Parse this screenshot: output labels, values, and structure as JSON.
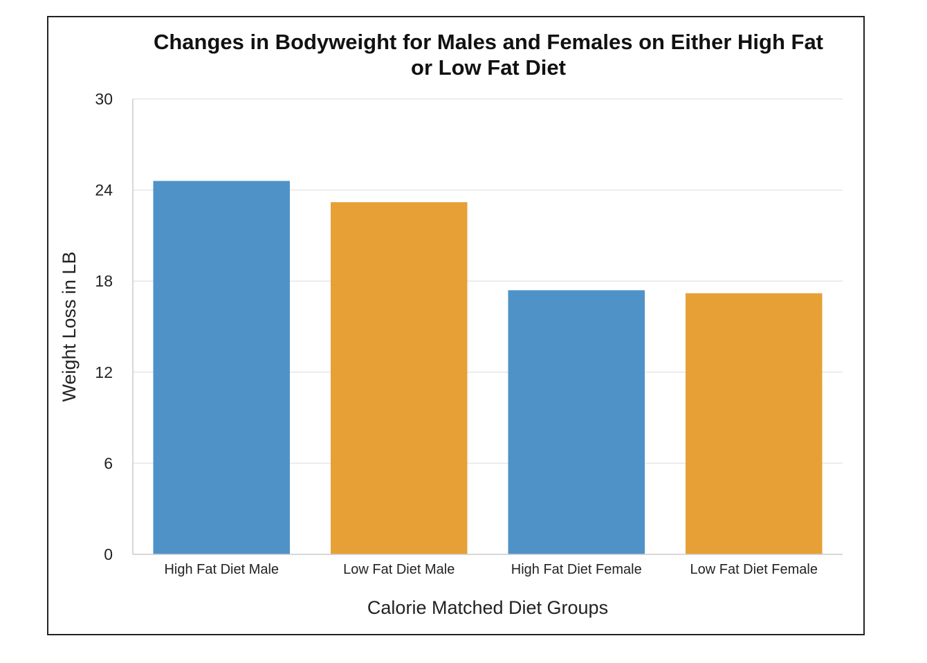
{
  "chart_data": {
    "type": "bar",
    "title_lines": [
      "Changes in Bodyweight for Males and Females on Either High Fat",
      "or Low Fat Diet"
    ],
    "categories": [
      "High Fat Diet Male",
      "Low Fat Diet Male",
      "High Fat Diet Female",
      "Low Fat Diet Female"
    ],
    "values": [
      24.6,
      23.2,
      17.4,
      17.2
    ],
    "bar_colors": [
      "#4f92c8",
      "#e6a035",
      "#4f92c8",
      "#e6a035"
    ],
    "xlabel": "Calorie Matched Diet Groups",
    "ylabel": "Weight Loss in LB",
    "ylim": [
      0,
      30
    ],
    "yticks": [
      0,
      6,
      12,
      18,
      24,
      30
    ],
    "grid": true,
    "gridline_color": "#e6e6e6",
    "axis_color": "#cccccc"
  }
}
